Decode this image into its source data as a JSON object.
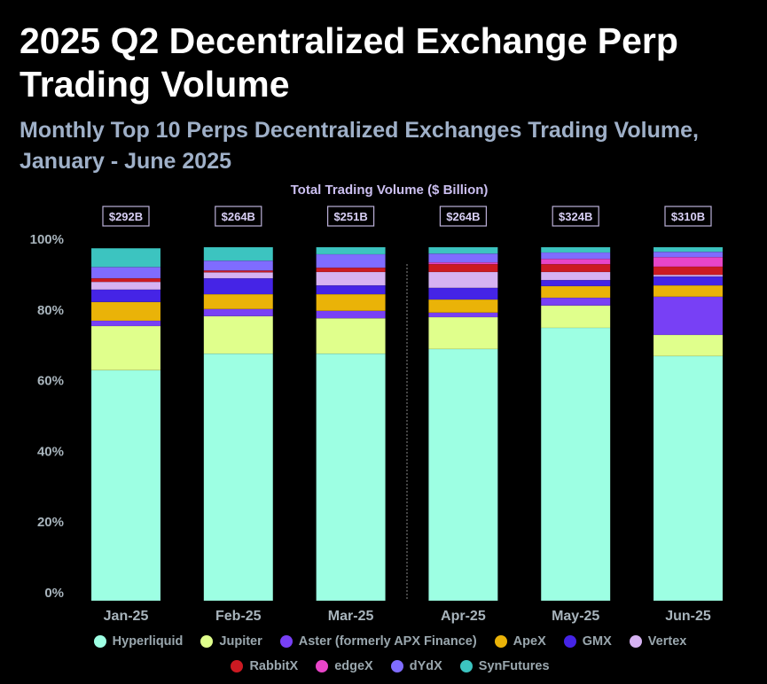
{
  "title": "2025 Q2 Decentralized Exchange Perp Trading Volume",
  "subtitle": "Monthly Top 10 Perps Decentralized Exchanges Trading Volume, January - June 2025",
  "chart_data": {
    "type": "bar",
    "stacked": true,
    "normalized": true,
    "annotation_title": "Total Trading Volume ($ Billion)",
    "categories": [
      "Jan-25",
      "Feb-25",
      "Mar-25",
      "Apr-25",
      "May-25",
      "Jun-25"
    ],
    "totals": [
      "$292B",
      "$264B",
      "$251B",
      "$264B",
      "$324B",
      "$310B"
    ],
    "yticks": [
      "0%",
      "20%",
      "40%",
      "60%",
      "80%",
      "100%"
    ],
    "ylim": [
      0,
      100
    ],
    "grid": false,
    "legend_position": "bottom",
    "divider_after": "Mar-25",
    "series": [
      {
        "name": "Hyperliquid",
        "color": "#9dffe3",
        "values": [
          65.2,
          69.9,
          69.9,
          71.2,
          77.2,
          69.2
        ]
      },
      {
        "name": "Jupiter",
        "color": "#e0ff8c",
        "values": [
          12.5,
          10.6,
          10.0,
          9.0,
          6.3,
          6.0
        ]
      },
      {
        "name": "Aster (formerly APX Finance)",
        "color": "#7840f5",
        "values": [
          1.5,
          2.0,
          2.1,
          1.3,
          2.2,
          10.8
        ]
      },
      {
        "name": "ApeX",
        "color": "#eab308",
        "values": [
          5.3,
          4.2,
          4.7,
          3.7,
          3.3,
          3.2
        ]
      },
      {
        "name": "GMX",
        "color": "#4524e6",
        "values": [
          3.5,
          4.5,
          2.5,
          3.3,
          1.7,
          2.5
        ]
      },
      {
        "name": "Vertex",
        "color": "#d6b2f2",
        "values": [
          2.2,
          1.7,
          3.8,
          4.5,
          2.3,
          0.5
        ]
      },
      {
        "name": "RabbitX",
        "color": "#cc1a22",
        "values": [
          1.0,
          0.5,
          1.2,
          2.2,
          2.2,
          2.3
        ]
      },
      {
        "name": "edgeX",
        "color": "#e845c8",
        "values": [
          0,
          0,
          0,
          0.5,
          1.5,
          2.7
        ]
      },
      {
        "name": "dYdX",
        "color": "#7f6cff",
        "values": [
          3.2,
          2.8,
          3.8,
          2.5,
          1.8,
          1.5
        ]
      },
      {
        "name": "SynFutures",
        "color": "#3cc4c0",
        "values": [
          5.3,
          3.8,
          2.0,
          1.8,
          1.5,
          1.3
        ]
      }
    ]
  }
}
